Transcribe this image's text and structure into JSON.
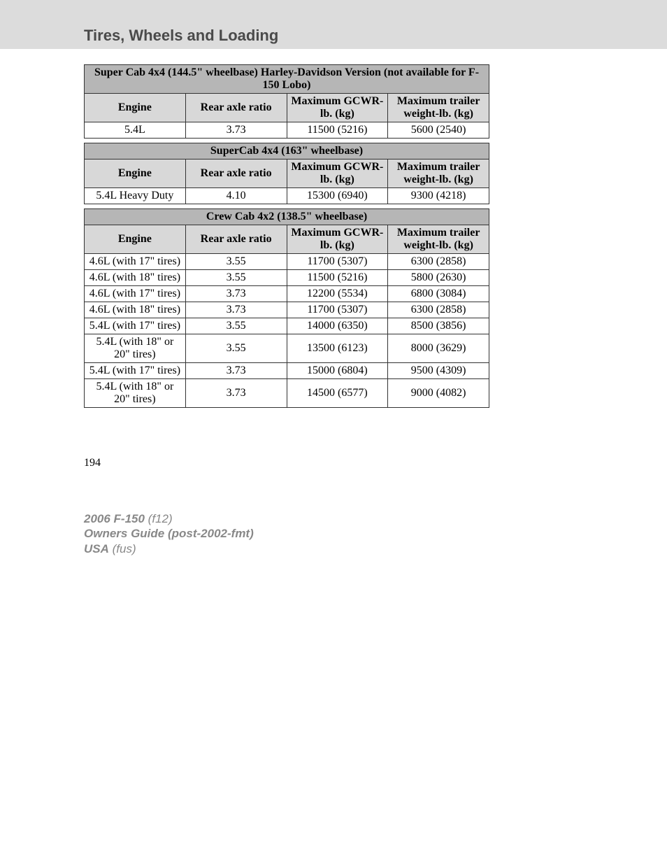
{
  "section_title": "Tires, Wheels and Loading",
  "page_number": "194",
  "footer": {
    "line1_bold": "2006 F-150",
    "line1_ital": " (f12)",
    "line2": "Owners Guide (post-2002-fmt)",
    "line3_bold": "USA",
    "line3_ital": " (fus)"
  },
  "columns": {
    "engine": "Engine",
    "ratio": "Rear axle ratio",
    "gcwr": "Maximum GCWR-lb. (kg)",
    "trailer": "Maximum trailer weight-lb. (kg)"
  },
  "col_widths": [
    "25%",
    "25%",
    "25%",
    "25%"
  ],
  "header_bg": "#d8d8d8",
  "banner_bg": "#b6b6b6",
  "border_color": "#333333",
  "tables": [
    {
      "banner": "Super Cab 4x4 (144.5\" wheelbase) Harley-Davidson Version (not available for F-150 Lobo)",
      "rows": [
        {
          "engine": "5.4L",
          "ratio": "3.73",
          "gcwr": "11500 (5216)",
          "trailer": "5600 (2540)"
        }
      ]
    },
    {
      "banner": "SuperCab 4x4 (163\" wheelbase)",
      "rows": [
        {
          "engine": "5.4L Heavy Duty",
          "ratio": "4.10",
          "gcwr": "15300 (6940)",
          "trailer": "9300 (4218)"
        }
      ]
    },
    {
      "banner": "Crew Cab 4x2 (138.5\" wheelbase)",
      "rows": [
        {
          "engine": "4.6L (with 17\" tires)",
          "ratio": "3.55",
          "gcwr": "11700 (5307)",
          "trailer": "6300 (2858)"
        },
        {
          "engine": "4.6L (with 18\" tires)",
          "ratio": "3.55",
          "gcwr": "11500 (5216)",
          "trailer": "5800 (2630)"
        },
        {
          "engine": "4.6L (with 17\" tires)",
          "ratio": "3.73",
          "gcwr": "12200 (5534)",
          "trailer": "6800 (3084)"
        },
        {
          "engine": "4.6L (with 18\" tires)",
          "ratio": "3.73",
          "gcwr": "11700 (5307)",
          "trailer": "6300 (2858)"
        },
        {
          "engine": "5.4L (with 17\" tires)",
          "ratio": "3.55",
          "gcwr": "14000 (6350)",
          "trailer": "8500 (3856)"
        },
        {
          "engine": "5.4L (with 18\" or 20\" tires)",
          "ratio": "3.55",
          "gcwr": "13500 (6123)",
          "trailer": "8000 (3629)"
        },
        {
          "engine": "5.4L (with 17\" tires)",
          "ratio": "3.73",
          "gcwr": "15000 (6804)",
          "trailer": "9500 (4309)"
        },
        {
          "engine": "5.4L (with 18\" or 20\" tires)",
          "ratio": "3.73",
          "gcwr": "14500 (6577)",
          "trailer": "9000 (4082)"
        }
      ]
    }
  ]
}
